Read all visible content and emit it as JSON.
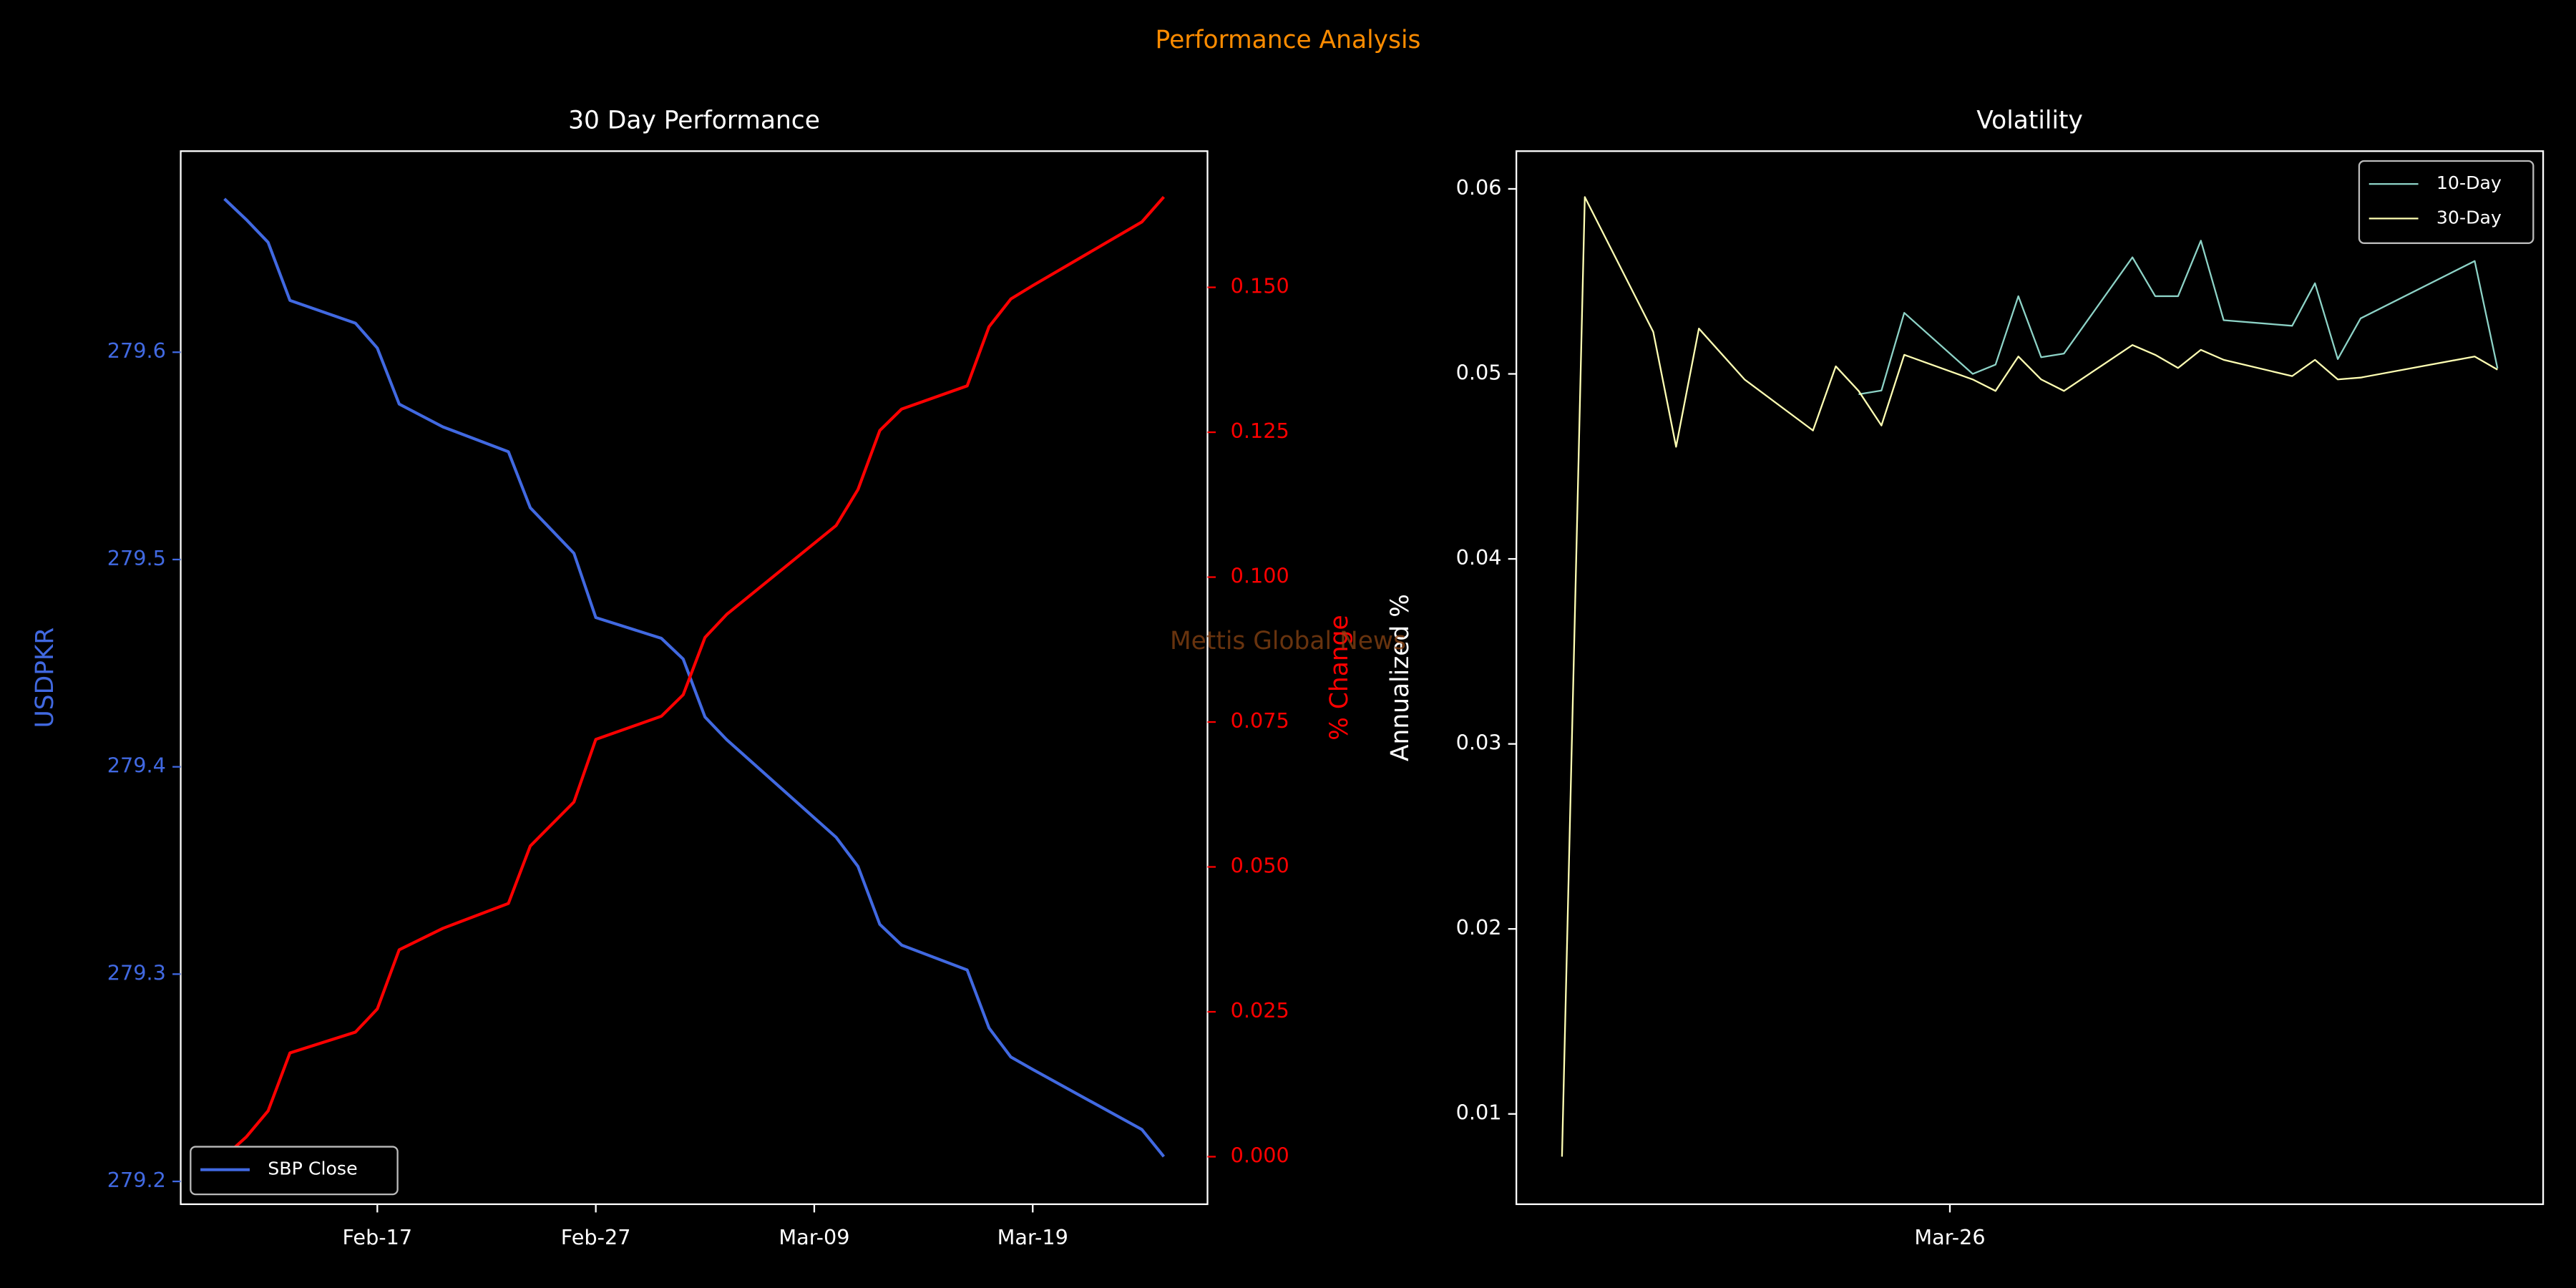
{
  "title": "Performance Analysis",
  "watermark": "Mettis Global News",
  "chart_data": [
    {
      "type": "line",
      "title": "30 Day Performance",
      "ylabel": "USDPKR",
      "y2label": "% Change",
      "x": [
        "Feb-10",
        "Feb-11",
        "Feb-12",
        "Feb-13",
        "Feb-16",
        "Feb-17",
        "Feb-18",
        "Feb-20",
        "Feb-23",
        "Feb-24",
        "Feb-26",
        "Feb-27",
        "Mar-02",
        "Mar-03",
        "Mar-04",
        "Mar-05",
        "Mar-10",
        "Mar-11",
        "Mar-12",
        "Mar-13",
        "Mar-16",
        "Mar-17",
        "Mar-18",
        "Mar-19",
        "Mar-24",
        "Mar-25"
      ],
      "series": [
        {
          "name": "SBP Close",
          "color": "#4169e1",
          "axis": "y",
          "values": [
            279.674,
            279.664,
            279.653,
            279.625,
            279.614,
            279.602,
            279.575,
            279.564,
            279.552,
            279.525,
            279.503,
            279.472,
            279.462,
            279.452,
            279.424,
            279.413,
            279.366,
            279.352,
            279.324,
            279.314,
            279.302,
            279.274,
            279.26,
            279.254,
            279.225,
            279.212
          ]
        },
        {
          "color": "#ff0000",
          "axis": "y2",
          "values": [
            0,
            0.0034,
            0.0079,
            0.0179,
            0.0215,
            0.0255,
            0.0357,
            0.0394,
            0.0437,
            0.0536,
            0.0612,
            0.072,
            0.076,
            0.0797,
            0.0896,
            0.0936,
            0.1089,
            0.1151,
            0.1253,
            0.129,
            0.133,
            0.1432,
            0.148,
            0.1503,
            0.1613,
            0.1656
          ]
        }
      ],
      "xlim": [
        "Feb-08",
        "Mar-27"
      ],
      "xticks": [
        "Feb-17",
        "Feb-27",
        "Mar-09",
        "Mar-19"
      ],
      "ylim": [
        279.189,
        279.697
      ],
      "yticks": [
        279.2,
        279.3,
        279.4,
        279.5,
        279.6
      ],
      "y2lim": [
        -0.0082,
        0.1735
      ],
      "y2ticks": [
        {
          "value": 0,
          "label": "0.000"
        },
        {
          "value": 0.025,
          "label": "0.025"
        },
        {
          "value": 0.05,
          "label": "0.050"
        },
        {
          "value": 0.075,
          "label": "0.075"
        },
        {
          "value": 0.1,
          "label": "0.100"
        },
        {
          "value": 0.125,
          "label": "0.125"
        },
        {
          "value": 0.15,
          "label": "0.150"
        }
      ],
      "legend": "lower left",
      "grid": false
    },
    {
      "type": "line",
      "title": "Volatility",
      "ylabel": "Annualized %",
      "x": [
        "Mar-09",
        "Mar-10",
        "Mar-13",
        "Mar-14",
        "Mar-15",
        "Mar-17",
        "Mar-20",
        "Mar-21",
        "Mar-22",
        "Mar-23",
        "Mar-24",
        "Mar-27",
        "Mar-28",
        "Mar-29",
        "Mar-30",
        "Mar-31",
        "Apr-03",
        "Apr-04",
        "Apr-05",
        "Apr-06",
        "Apr-07",
        "Apr-10",
        "Apr-11",
        "Apr-12",
        "Apr-13",
        "Apr-18",
        "Apr-19"
      ],
      "series": [
        {
          "name": "10-Day",
          "color": "#8dd3c7",
          "values": [
            null,
            null,
            null,
            null,
            null,
            null,
            null,
            null,
            0.0489,
            0.0491,
            0.0533,
            0.05,
            0.0505,
            0.0542,
            0.0509,
            0.0511,
            0.0563,
            0.0542,
            0.0542,
            0.0572,
            0.0529,
            0.0526,
            0.0549,
            0.0508,
            0.053,
            0.0561,
            0.0503
          ]
        },
        {
          "name": "30-Day",
          "color": "#ffffb3",
          "values": [
            0.00769,
            0.05956,
            0.05227,
            0.04606,
            0.05245,
            0.0497,
            0.04694,
            0.05041,
            0.04908,
            0.04721,
            0.05103,
            0.0497,
            0.04908,
            0.05094,
            0.0497,
            0.04908,
            0.05156,
            0.05103,
            0.05032,
            0.0513,
            0.05076,
            0.04988,
            0.05076,
            0.0497,
            0.0498,
            0.05094,
            0.05023
          ]
        }
      ],
      "xlim": [
        "Mar-07",
        "Apr-21"
      ],
      "xticks": [
        "Mar-26"
      ],
      "ylim": [
        0.00512,
        0.06204
      ],
      "yticks": [
        0.01,
        0.02,
        0.03,
        0.04,
        0.05,
        0.06
      ],
      "legend": "upper right",
      "grid": false
    }
  ]
}
